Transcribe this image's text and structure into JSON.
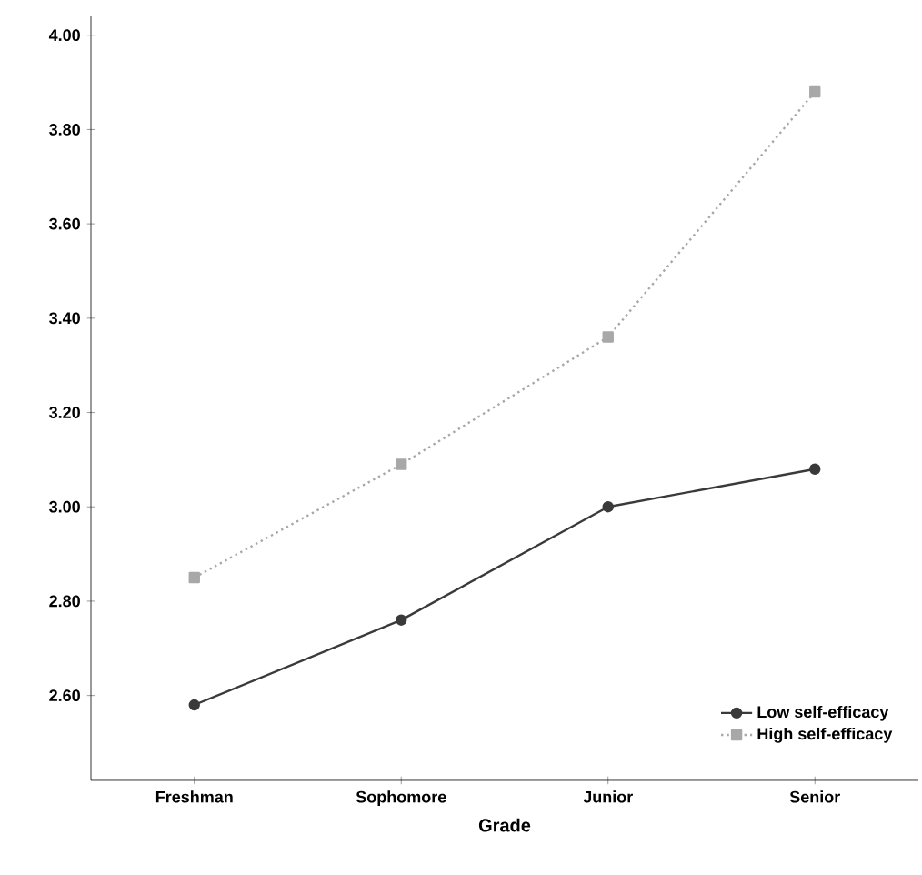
{
  "chart_data": {
    "type": "line",
    "xlabel": "Grade",
    "categories": [
      "Freshman",
      "Sophomore",
      "Junior",
      "Senior"
    ],
    "series": [
      {
        "name": "Low self-efficacy",
        "color": "#3a3a3a",
        "values": [
          2.58,
          2.76,
          3.0,
          3.08
        ],
        "marker": "circle",
        "line_style": "solid"
      },
      {
        "name": "High self-efficacy",
        "color": "#a8a8a8",
        "values": [
          2.85,
          3.09,
          3.36,
          3.88
        ],
        "marker": "square",
        "line_style": "dotted"
      }
    ],
    "ylim": [
      2.42,
      4.04
    ],
    "yticks": [
      {
        "value": 2.6,
        "label": "2.60"
      },
      {
        "value": 2.8,
        "label": "2.80"
      },
      {
        "value": 3.0,
        "label": "3.00"
      },
      {
        "value": 3.2,
        "label": "3.20"
      },
      {
        "value": 3.4,
        "label": "3.40"
      },
      {
        "value": 3.6,
        "label": "3.60"
      },
      {
        "value": 3.8,
        "label": "3.80"
      },
      {
        "value": 4.0,
        "label": "4.00"
      }
    ],
    "legend": "bottom right",
    "grid": false
  }
}
